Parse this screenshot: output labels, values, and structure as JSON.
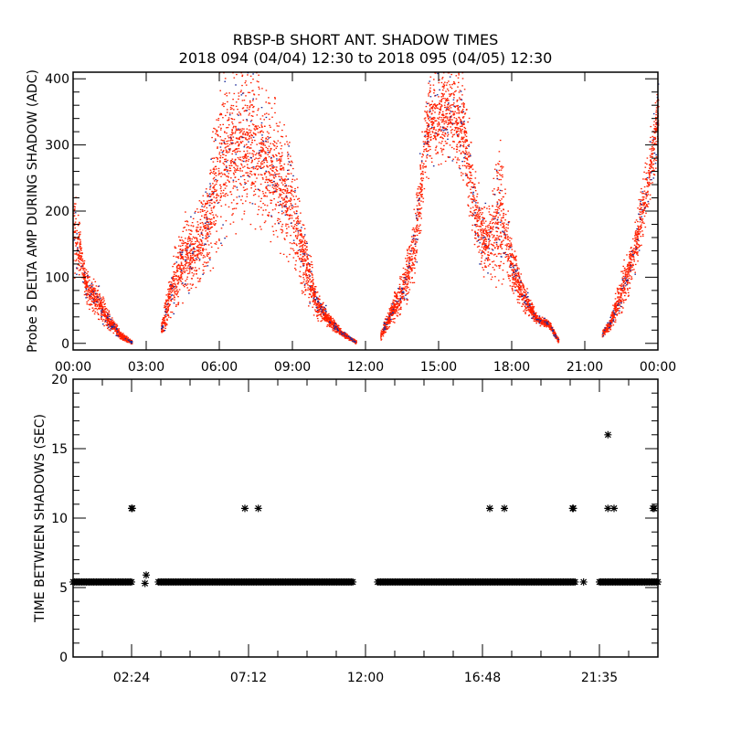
{
  "title": "RBSP-B SHORT ANT. SHADOW TIMES",
  "subtitle": "2018 094 (04/04) 12:30 to 2018 095 (04/05) 12:30",
  "chart_data": [
    {
      "type": "scatter",
      "name": "probe5-delta-amp",
      "ylabel": "Probe 5 DELTA AMP DURING SHADOW (ADC)",
      "xlabel": "",
      "xlim": [
        0,
        24
      ],
      "ylim": [
        -10,
        410
      ],
      "x_unit": "hours",
      "xticks": [
        0,
        3,
        6,
        9,
        12,
        15,
        18,
        21,
        24
      ],
      "xtick_labels": [
        "00:00",
        "03:00",
        "06:00",
        "09:00",
        "12:00",
        "15:00",
        "18:00",
        "21:00",
        "00:00"
      ],
      "yticks": [
        0,
        100,
        200,
        300,
        400
      ],
      "ytick_labels": [
        "0",
        "100",
        "200",
        "300",
        "400"
      ],
      "grid": false,
      "series": [
        {
          "name": "primary",
          "color": "#ff2000",
          "density": 1.0
        },
        {
          "name": "secondary",
          "color": "#1a2a9a",
          "density": 0.08
        }
      ],
      "bands_description": "each band is a list of [hour, low, high] envelope knots of the scattered samples",
      "bands": [
        [
          [
            0.0,
            100,
            240
          ],
          [
            0.3,
            105,
            165
          ],
          [
            0.5,
            60,
            110
          ],
          [
            1.0,
            40,
            90
          ],
          [
            1.5,
            20,
            42
          ],
          [
            2.0,
            5,
            16
          ],
          [
            2.4,
            0,
            5
          ]
        ],
        [
          [
            3.6,
            10,
            30
          ],
          [
            4.0,
            40,
            120
          ],
          [
            4.5,
            70,
            190
          ],
          [
            5.0,
            85,
            200
          ],
          [
            5.5,
            110,
            250
          ],
          [
            6.0,
            150,
            400
          ],
          [
            6.5,
            180,
            400
          ],
          [
            7.0,
            195,
            400
          ],
          [
            7.5,
            185,
            405
          ],
          [
            8.0,
            170,
            380
          ],
          [
            8.5,
            150,
            330
          ],
          [
            9.0,
            120,
            290
          ],
          [
            9.5,
            70,
            170
          ],
          [
            10.0,
            40,
            80
          ],
          [
            10.5,
            25,
            45
          ],
          [
            11.0,
            12,
            20
          ],
          [
            11.6,
            0,
            5
          ]
        ],
        [
          [
            12.6,
            5,
            20
          ],
          [
            13.0,
            30,
            60
          ],
          [
            13.5,
            50,
            110
          ],
          [
            14.0,
            100,
            200
          ],
          [
            14.5,
            250,
            400
          ],
          [
            15.0,
            280,
            410
          ],
          [
            15.5,
            280,
            410
          ],
          [
            16.0,
            250,
            400
          ],
          [
            16.5,
            130,
            250
          ],
          [
            17.0,
            100,
            200
          ],
          [
            17.5,
            100,
            300
          ],
          [
            18.0,
            80,
            150
          ],
          [
            18.5,
            50,
            90
          ],
          [
            19.0,
            30,
            45
          ],
          [
            19.5,
            25,
            35
          ],
          [
            19.9,
            0,
            10
          ]
        ],
        [
          [
            21.7,
            10,
            20
          ],
          [
            22.0,
            20,
            40
          ],
          [
            22.5,
            50,
            110
          ],
          [
            23.0,
            100,
            170
          ],
          [
            23.5,
            180,
            280
          ],
          [
            24.0,
            300,
            400
          ]
        ]
      ]
    },
    {
      "type": "scatter",
      "name": "time-between-shadows",
      "ylabel": "TIME BETWEEN SHADOWS (SEC)",
      "xlabel": "",
      "xlim": [
        0,
        24
      ],
      "ylim": [
        0,
        20
      ],
      "x_unit": "hours",
      "xticks": [
        2.4,
        7.2,
        12.0,
        16.8,
        21.6
      ],
      "xtick_labels": [
        "02:24",
        "07:12",
        "12:00",
        "16:48",
        "21:35"
      ],
      "yticks": [
        0,
        5,
        10,
        15,
        20
      ],
      "ytick_labels": [
        "0",
        "5",
        "10",
        "15",
        "20"
      ],
      "grid": false,
      "marker": "asterisk",
      "color": "#000000",
      "baseline_value": 5.4,
      "baseline_runs": [
        [
          0.0,
          2.45
        ],
        [
          3.5,
          11.5
        ],
        [
          12.5,
          20.6
        ],
        [
          21.6,
          24.0
        ]
      ],
      "points": [
        [
          2.4,
          10.7
        ],
        [
          2.43,
          10.7
        ],
        [
          2.95,
          5.3
        ],
        [
          3.0,
          5.9
        ],
        [
          7.05,
          10.7
        ],
        [
          7.6,
          10.7
        ],
        [
          17.1,
          10.7
        ],
        [
          17.7,
          10.7
        ],
        [
          20.5,
          10.7
        ],
        [
          20.53,
          10.7
        ],
        [
          20.95,
          5.4
        ],
        [
          21.95,
          16.0
        ],
        [
          21.95,
          10.7
        ],
        [
          22.2,
          10.7
        ],
        [
          23.8,
          10.7
        ],
        [
          23.85,
          10.7
        ]
      ]
    }
  ]
}
